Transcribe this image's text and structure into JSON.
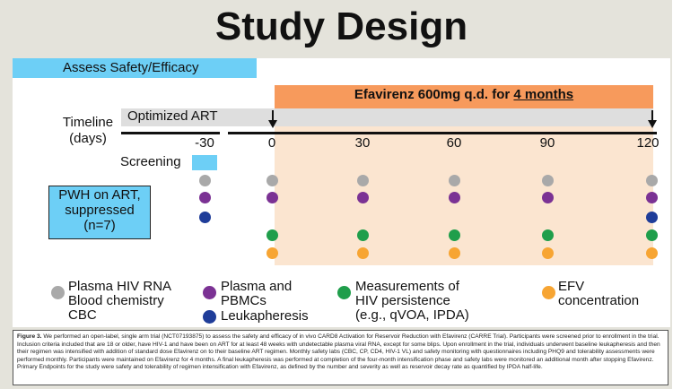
{
  "title": "Study Design",
  "assess_label": "Assess Safety/Efficacy",
  "efv_bar": {
    "prefix": "Efavirenz 600mg q.d. for ",
    "underlined": "4 months"
  },
  "art_label": "Optimized ART",
  "timeline": {
    "line1": "Timeline",
    "line2": "(days)"
  },
  "ticks": [
    "-30",
    "0",
    "30",
    "60",
    "90",
    "120"
  ],
  "screening_label": "Screening",
  "pwh": {
    "line1": "PWH on ART,",
    "line2": "suppressed",
    "line3": "(n=7)"
  },
  "legend": {
    "gray": {
      "lines": [
        "Plasma HIV RNA",
        "Blood chemistry",
        "CBC"
      ],
      "color": "#a9a9a9"
    },
    "purple": {
      "lines": [
        "Plasma and",
        "PBMCs"
      ],
      "color": "#7b3294"
    },
    "navy": {
      "lines": [
        "Leukapheresis"
      ],
      "color": "#1f3d99"
    },
    "green": {
      "lines": [
        "Measurements of",
        "HIV persistence",
        "(e.g., qVOA, IPDA)"
      ],
      "color": "#1f9e4b"
    },
    "orange": {
      "lines": [
        "EFV",
        "concentration"
      ],
      "color": "#f7a533"
    }
  },
  "caption": {
    "label": "Figure 3.",
    "text": " We performed an open-label, single arm trial (NCT07193875) to assess the safety and efficacy of in vivo CARD8 Activation for Reservoir Reduction with Efavirenz (CARRE Trial). Participants were screened prior to enrollment in the trial. Inclusion criteria included that are 18 or older, have HIV-1 and have been on ART for at least 48 weeks with undetectable plasma viral RNA, except for some blips. Upon enrollment in the trial, individuals underwent baseline leukapheresis and then their regimen was intensified with addition of standard dose Efavirenz on to their baseline ART regimen. Monthly safety labs (CBC, CP, CD4, HIV-1 VL) and safety monitoring with questionnaires including PHQ9 and tolerability assessments were performed monthly. Participants were maintained on Efavirenz for 4 months. A final leukapheresis was performed at completion of the four-month intensification phase and safety labs were monitored an additional month after stopping Efavirenz. Primary Endpoints for the study were safety and tolerability of regimen intensification with Efavirenz, as defined by the number and severity as well as reservoir decay rate as quantified by IPDA half-life."
  }
}
